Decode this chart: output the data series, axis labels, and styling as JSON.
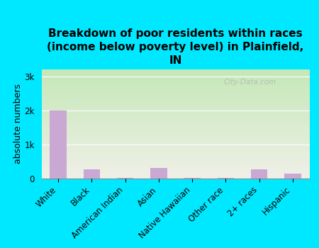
{
  "title": "Breakdown of poor residents within races\n(income below poverty level) in Plainfield,\nIN",
  "ylabel": "absolute numbers",
  "categories": [
    "White",
    "Black",
    "American Indian",
    "Asian",
    "Native Hawaiian",
    "Other race",
    "2+ races",
    "Hispanic"
  ],
  "values": [
    2000,
    270,
    25,
    320,
    20,
    20,
    260,
    150
  ],
  "bar_color": "#c9a8d4",
  "background_outer": "#00e8ff",
  "background_plot_top": "#c5e8b8",
  "background_plot_bottom": "#f0f0e8",
  "yticks": [
    0,
    1000,
    2000,
    3000
  ],
  "ytick_labels": [
    "0",
    "1k",
    "2k",
    "3k"
  ],
  "ylim": [
    0,
    3200
  ],
  "watermark": "City-Data.com",
  "title_fontsize": 11,
  "ylabel_fontsize": 9,
  "tick_fontsize": 8.5
}
